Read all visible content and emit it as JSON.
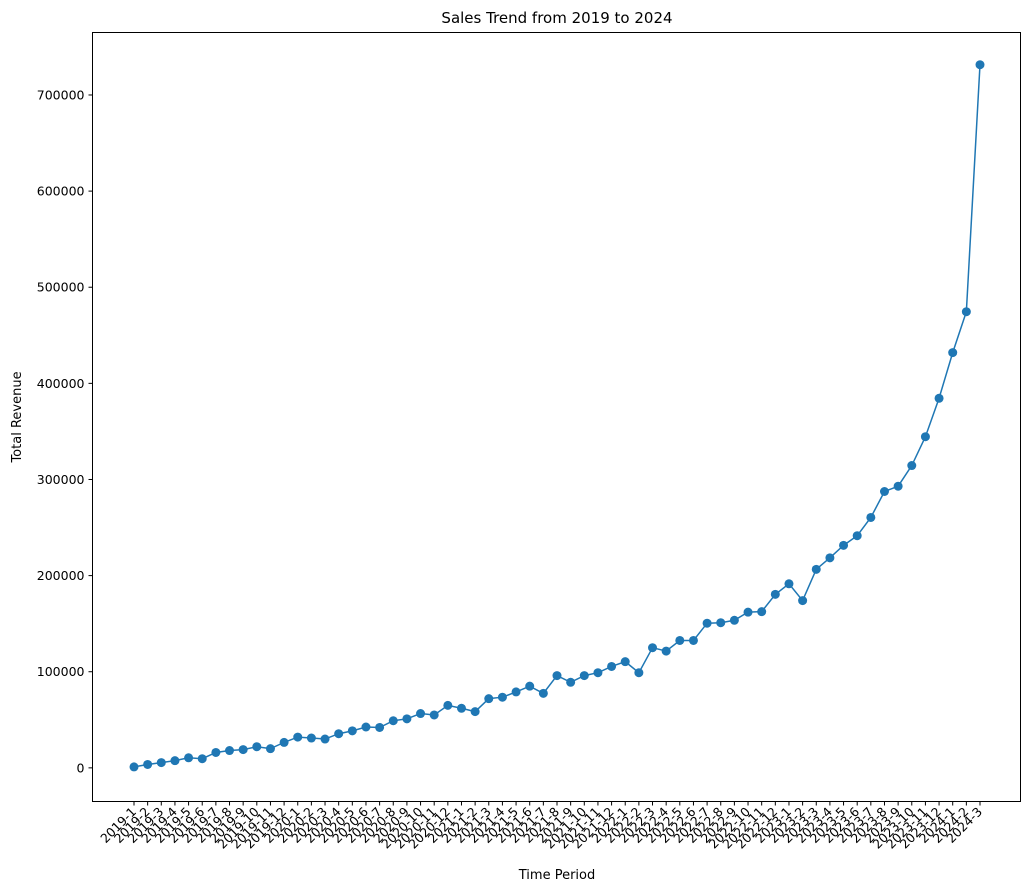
{
  "chart_data": {
    "type": "line",
    "title": "Sales Trend from 2019 to 2024",
    "xlabel": "Time Period",
    "ylabel": "Total Revenue",
    "ylim": [
      -35000,
      765000
    ],
    "yticks": [
      0,
      100000,
      200000,
      300000,
      400000,
      500000,
      600000,
      700000
    ],
    "ytick_labels": [
      "0",
      "100000",
      "200000",
      "300000",
      "400000",
      "500000",
      "600000",
      "700000"
    ],
    "color": "#1f77b4",
    "grid": false,
    "marker": "circle",
    "categories": [
      "2019-1",
      "2019-2",
      "2019-3",
      "2019-4",
      "2019-5",
      "2019-6",
      "2019-7",
      "2019-8",
      "2019-9",
      "2019-10",
      "2019-11",
      "2019-12",
      "2020-1",
      "2020-2",
      "2020-3",
      "2020-4",
      "2020-5",
      "2020-6",
      "2020-7",
      "2020-8",
      "2020-9",
      "2020-10",
      "2020-11",
      "2020-12",
      "2021-1",
      "2021-2",
      "2021-3",
      "2021-4",
      "2021-5",
      "2021-6",
      "2021-7",
      "2021-8",
      "2021-9",
      "2021-10",
      "2021-11",
      "2021-12",
      "2022-1",
      "2022-2",
      "2022-3",
      "2022-4",
      "2022-5",
      "2022-6",
      "2022-7",
      "2022-8",
      "2022-9",
      "2022-10",
      "2022-11",
      "2022-12",
      "2023-1",
      "2023-2",
      "2023-3",
      "2023-4",
      "2023-5",
      "2023-6",
      "2023-7",
      "2023-8",
      "2023-9",
      "2023-10",
      "2023-11",
      "2023-12",
      "2024-1",
      "2024-2",
      "2024-3"
    ],
    "values": [
      1000,
      3500,
      5500,
      7500,
      10500,
      9500,
      16000,
      18000,
      19000,
      22000,
      20000,
      26500,
      32000,
      31000,
      30000,
      35500,
      38500,
      42500,
      42000,
      49000,
      51000,
      56500,
      55000,
      65000,
      62000,
      58500,
      72000,
      73500,
      79000,
      85000,
      77500,
      96000,
      89000,
      96000,
      99000,
      105500,
      110500,
      99000,
      125000,
      121500,
      132500,
      132500,
      150500,
      151000,
      153500,
      162000,
      162500,
      180500,
      191500,
      174000,
      206500,
      218500,
      231500,
      241500,
      260500,
      287500,
      293000,
      314500,
      344500,
      384500,
      432000,
      474500,
      731500
    ]
  }
}
